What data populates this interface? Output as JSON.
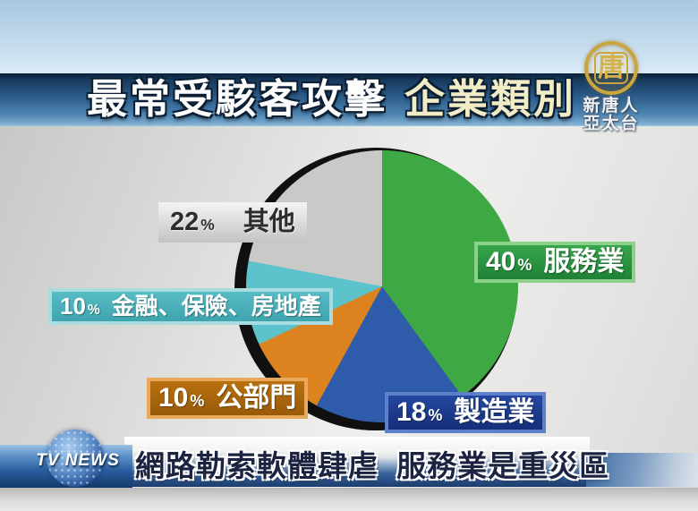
{
  "header": {
    "title_left": "最常受駭客攻擊",
    "title_right": "企業類別"
  },
  "station": {
    "logo_glyph": "唐",
    "logo_line1": "新唐人",
    "logo_line2": "亞太台",
    "news_logo": "TV NEWS"
  },
  "chart_data": {
    "type": "pie",
    "title": "最常受駭客攻擊 企業類別",
    "direction": "clockwise",
    "start_angle_deg": 0,
    "slices": [
      {
        "label": "服務業",
        "value": 40,
        "color": "#3ea844"
      },
      {
        "label": "製造業",
        "value": 18,
        "color": "#2e5cab"
      },
      {
        "label": "公部門",
        "value": 10,
        "color": "#dc821e"
      },
      {
        "label": "金融、保險、房地產",
        "value": 10,
        "color": "#5cc3cc"
      },
      {
        "label": "其他",
        "value": 22,
        "color": "#c9c9c7"
      }
    ]
  },
  "labels": {
    "other": {
      "value": "22",
      "unit": "%",
      "name": "其他"
    },
    "services": {
      "value": "40",
      "unit": "%",
      "name": "服務業"
    },
    "manufacturing": {
      "value": "18",
      "unit": "%",
      "name": "製造業"
    },
    "public_sector": {
      "value": "10",
      "unit": "%",
      "name": "公部門"
    },
    "finance": {
      "value": "10",
      "unit": "%",
      "name": "金融、保險、房地產"
    }
  },
  "ticker": {
    "headline": "網路勒索軟體肆虐 服務業是重災區"
  }
}
